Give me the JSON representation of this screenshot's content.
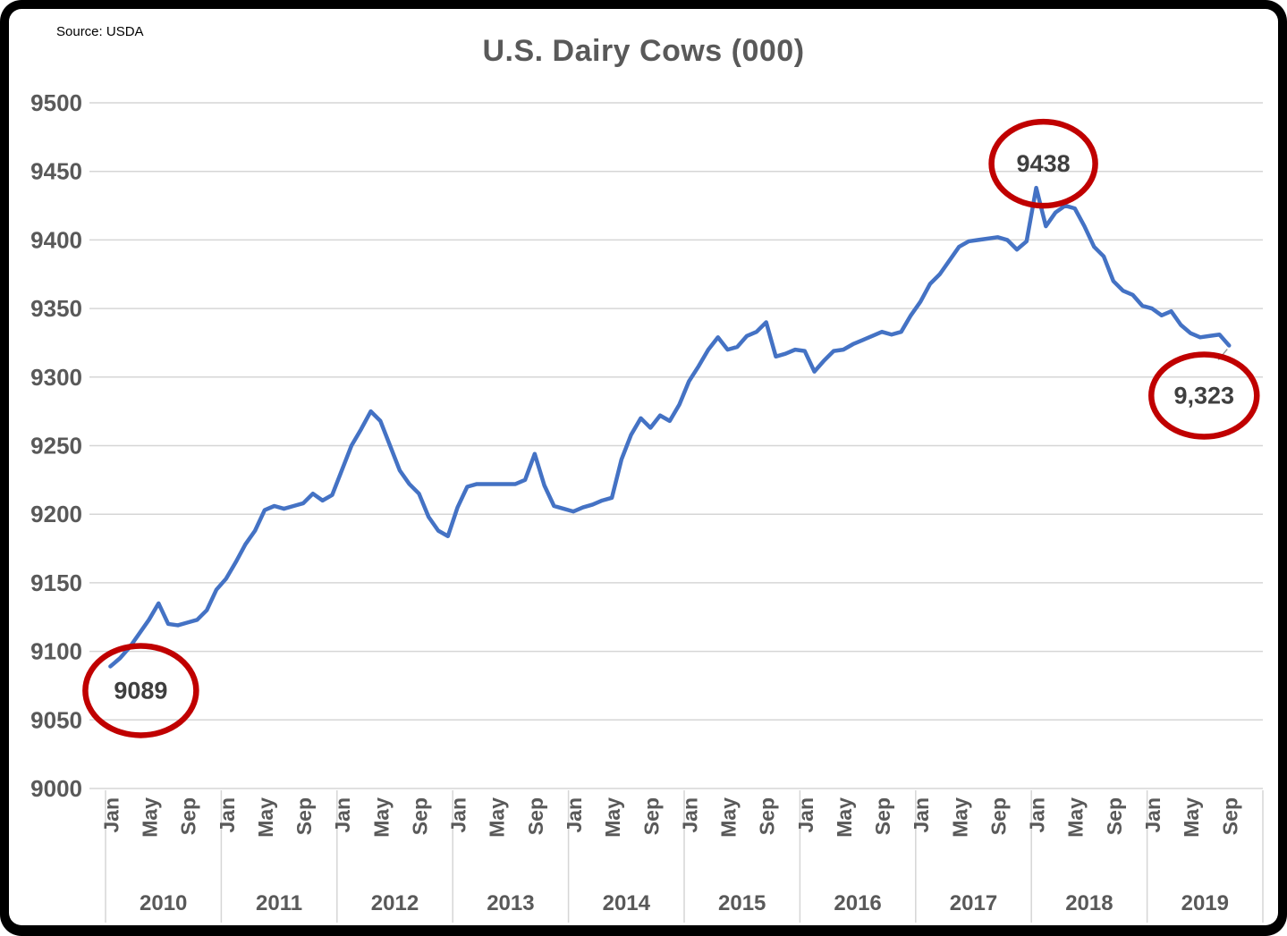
{
  "chart_data": {
    "type": "line",
    "title": "U.S. Dairy Cows (000)",
    "source": "Source: USDA",
    "ylim": [
      9000,
      9500
    ],
    "ytick_step": 50,
    "grid": true,
    "legend": "none",
    "line_color": "#4472C4",
    "annotation_color": "#C00000",
    "month_ticks": [
      "Jan",
      "May",
      "Sep"
    ],
    "years": [
      {
        "year": "2010",
        "values": [
          9089,
          9095,
          9103,
          9113,
          9123,
          9135,
          9120,
          9119,
          9121,
          9123,
          9130,
          9145
        ]
      },
      {
        "year": "2011",
        "values": [
          9153,
          9165,
          9178,
          9188,
          9203,
          9206,
          9204,
          9206,
          9208,
          9215,
          9210,
          9214
        ]
      },
      {
        "year": "2012",
        "values": [
          9232,
          9250,
          9262,
          9275,
          9268,
          9250,
          9232,
          9222,
          9215,
          9198,
          9188,
          9184
        ]
      },
      {
        "year": "2013",
        "values": [
          9205,
          9220,
          9222,
          9222,
          9222,
          9222,
          9222,
          9225,
          9244,
          9221,
          9206,
          9204
        ]
      },
      {
        "year": "2014",
        "values": [
          9202,
          9205,
          9207,
          9210,
          9212,
          9240,
          9258,
          9270,
          9263,
          9272,
          9268,
          9280
        ]
      },
      {
        "year": "2015",
        "values": [
          9297,
          9308,
          9320,
          9329,
          9320,
          9322,
          9330,
          9333,
          9340,
          9315,
          9317,
          9320
        ]
      },
      {
        "year": "2016",
        "values": [
          9319,
          9304,
          9312,
          9319,
          9320,
          9324,
          9327,
          9330,
          9333,
          9331,
          9333,
          9345
        ]
      },
      {
        "year": "2017",
        "values": [
          9355,
          9368,
          9375,
          9385,
          9395,
          9399,
          9400,
          9401,
          9402,
          9400,
          9393,
          9399
        ]
      },
      {
        "year": "2018",
        "values": [
          9438,
          9410,
          9420,
          9425,
          9423,
          9410,
          9395,
          9388,
          9370,
          9363,
          9360,
          9352
        ]
      },
      {
        "year": "2019",
        "values": [
          9350,
          9345,
          9348,
          9338,
          9332,
          9329,
          9330,
          9331,
          9323
        ]
      }
    ],
    "annotations": [
      {
        "label": "9089",
        "year": "2010",
        "month": "Jan",
        "month_index": 0,
        "value": 9089,
        "placement": "below"
      },
      {
        "label": "9438",
        "year": "2018",
        "month": "Jan",
        "month_index": 96,
        "value": 9438,
        "placement": "above"
      },
      {
        "label": "9,323",
        "year": "2019",
        "month": "Sep",
        "month_index": 116,
        "value": 9323,
        "placement": "below-leader"
      }
    ]
  }
}
